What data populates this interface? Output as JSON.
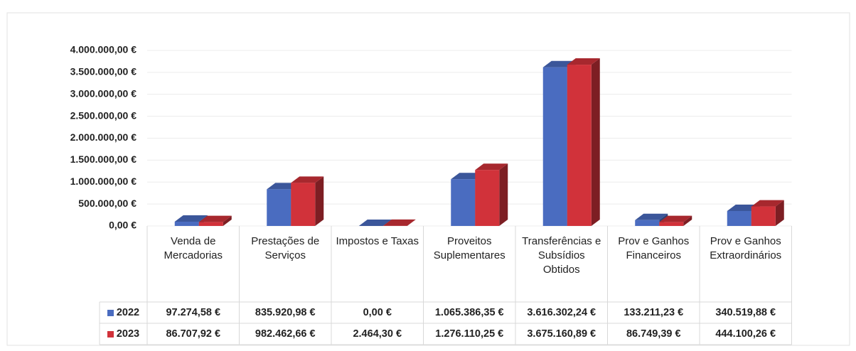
{
  "chart_data": {
    "type": "bar3d",
    "categories": [
      "Venda de Mercadorias",
      "Prestações de Serviços",
      "Impostos e Taxas",
      "Proveitos Suplementares",
      "Transferências e Subsídios Obtidos",
      "Prov e Ganhos Financeiros",
      "Prov e Ganhos Extraordinários"
    ],
    "series": [
      {
        "name": "2022",
        "color": "#4a6cc0",
        "values": [
          97274.58,
          835920.98,
          0,
          1065386.35,
          3616302.24,
          133211.23,
          340519.88
        ],
        "value_labels": [
          "97.274,58 €",
          "835.920,98 €",
          "0,00 €",
          "1.065.386,35 €",
          "3.616.302,24 €",
          "133.211,23 €",
          "340.519,88 €"
        ]
      },
      {
        "name": "2023",
        "color": "#d1323a",
        "values": [
          86707.92,
          982462.66,
          2464.3,
          1276110.25,
          3675160.89,
          86749.39,
          444100.26
        ],
        "value_labels": [
          "86.707,92 €",
          "982.462,66 €",
          "2.464,30 €",
          "1.276.110,25 €",
          "3.675.160,89 €",
          "86.749,39 €",
          "444.100,26 €"
        ]
      }
    ],
    "ylim": [
      0,
      4000000
    ],
    "yticks": [
      {
        "value": 0,
        "label": "0,00 €"
      },
      {
        "value": 500000,
        "label": "500.000,00 €"
      },
      {
        "value": 1000000,
        "label": "1.000.000,00 €"
      },
      {
        "value": 1500000,
        "label": "1.500.000,00 €"
      },
      {
        "value": 2000000,
        "label": "2.000.000,00 €"
      },
      {
        "value": 2500000,
        "label": "2.500.000,00 €"
      },
      {
        "value": 3000000,
        "label": "3.000.000,00 €"
      },
      {
        "value": 3500000,
        "label": "3.500.000,00 €"
      },
      {
        "value": 4000000,
        "label": "4.000.000,00 €"
      }
    ],
    "grid": true
  }
}
